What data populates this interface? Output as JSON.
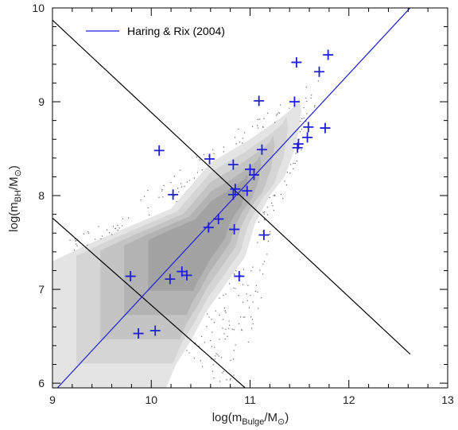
{
  "chart_data": {
    "type": "scatter",
    "xlabel": "log(m_Bulge/M_⊙)",
    "ylabel": "log(m_BH/M_⊙)",
    "xlim": [
      9,
      13
    ],
    "ylim": [
      5.95,
      10
    ],
    "xticks": [
      "9",
      "10",
      "11",
      "12",
      "13"
    ],
    "yticks": [
      "6",
      "7",
      "8",
      "9",
      "10"
    ],
    "grid": false,
    "legend_position": "top-left",
    "colors": {
      "fit_line": "#1f1fd6",
      "points": "#1f1fd6",
      "frame": "#000000"
    },
    "series": [
      {
        "name": "Haring & Rix (2004)",
        "kind": "line",
        "x": [
          9.05,
          12.62
        ],
        "y": [
          5.95,
          10.0
        ]
      },
      {
        "name": "",
        "kind": "points",
        "marker": "plus",
        "x": [
          9.79,
          9.87,
          10.04,
          10.08,
          10.19,
          10.22,
          10.31,
          10.36,
          10.58,
          10.59,
          10.68,
          10.83,
          10.83,
          10.84,
          10.85,
          10.89,
          10.97,
          11.0,
          11.04,
          11.09,
          11.12,
          11.14,
          11.45,
          11.47,
          11.48,
          11.49,
          11.58,
          11.59,
          11.7,
          11.76,
          11.79
        ],
        "y": [
          7.14,
          6.53,
          6.56,
          8.48,
          7.11,
          8.01,
          7.19,
          7.15,
          7.66,
          8.39,
          7.75,
          8.01,
          8.33,
          7.64,
          8.07,
          7.14,
          8.05,
          8.28,
          8.22,
          9.01,
          8.49,
          7.58,
          9.0,
          9.42,
          8.51,
          8.55,
          8.62,
          8.73,
          9.32,
          8.72,
          9.5
        ]
      }
    ],
    "reference_lines": [
      {
        "x": [
          9.0,
          12.62
        ],
        "y": [
          9.87,
          6.31
        ]
      },
      {
        "x": [
          9.0,
          10.95
        ],
        "y": [
          7.76,
          5.95
        ]
      }
    ],
    "density_contours": {
      "levels": 5,
      "gray_levels": [
        "#e4e4e4",
        "#d5d5d5",
        "#c4c4c4",
        "#b3b3b3",
        "#a3a3a3"
      ],
      "core_region": [
        [
          9.0,
          5.95
        ],
        [
          9.0,
          7.3
        ],
        [
          9.4,
          7.5
        ],
        [
          9.8,
          7.68
        ],
        [
          10.2,
          7.86
        ],
        [
          10.6,
          8.35
        ],
        [
          11.0,
          8.6
        ],
        [
          11.3,
          8.82
        ],
        [
          11.45,
          8.95
        ],
        [
          11.5,
          9.05
        ],
        [
          11.52,
          8.9
        ],
        [
          11.47,
          8.55
        ],
        [
          11.35,
          8.2
        ],
        [
          11.2,
          8.0
        ],
        [
          11.05,
          7.7
        ],
        [
          10.95,
          7.35
        ],
        [
          10.75,
          7.05
        ],
        [
          10.55,
          6.75
        ],
        [
          10.4,
          6.45
        ],
        [
          10.25,
          6.2
        ],
        [
          10.15,
          5.95
        ]
      ],
      "scatter_hull": [
        [
          9.0,
          7.42
        ],
        [
          9.5,
          7.75
        ],
        [
          10.0,
          8.1
        ],
        [
          10.5,
          8.45
        ],
        [
          11.0,
          8.8
        ],
        [
          11.3,
          9.0
        ],
        [
          11.55,
          9.2
        ],
        [
          11.7,
          9.25
        ],
        [
          11.65,
          8.9
        ],
        [
          11.5,
          8.4
        ],
        [
          11.35,
          8.0
        ],
        [
          11.2,
          7.6
        ],
        [
          11.15,
          7.2
        ],
        [
          11.1,
          6.8
        ],
        [
          11.0,
          6.4
        ],
        [
          10.85,
          6.1
        ],
        [
          10.75,
          5.95
        ]
      ]
    }
  }
}
